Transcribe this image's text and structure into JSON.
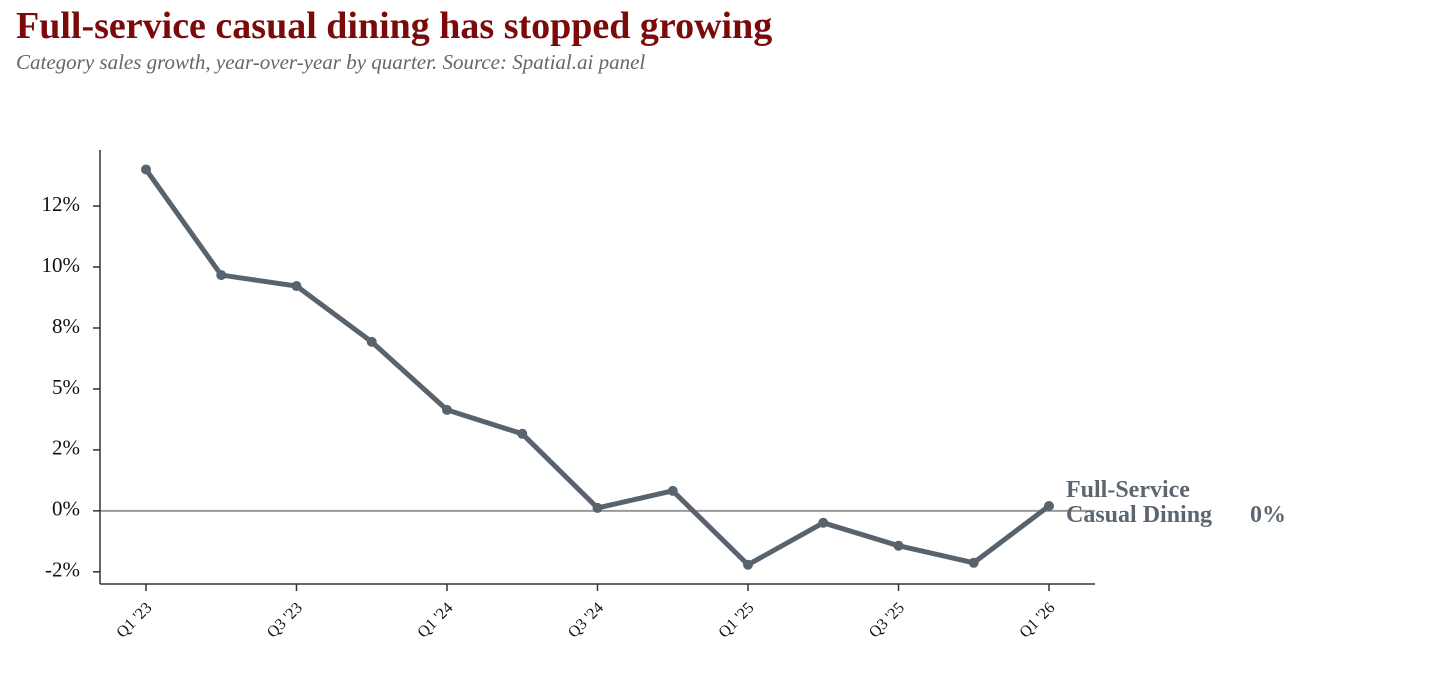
{
  "chart_data": {
    "type": "line",
    "title": "Full-service casual dining has stopped growing",
    "subtitle": "Category sales growth, year-over-year by quarter. Source: Spatial.ai panel",
    "categories": [
      "Q1 '23",
      null,
      "Q3 '23",
      null,
      "Q1 '24",
      null,
      "Q3 '24",
      null,
      "Q1 '25",
      null,
      "Q3 '25",
      null,
      "Q1 '26"
    ],
    "series": [
      {
        "name": "Full-Service Casual Dining",
        "color": "#59636d",
        "values": [
          14.0,
          9.67,
          9.22,
          6.93,
          4.14,
          3.16,
          0.12,
          0.82,
          -2.21,
          -0.49,
          -1.43,
          -2.13,
          0.2
        ],
        "value_labels": [
          null,
          null,
          null,
          null,
          null,
          null,
          null,
          null,
          null,
          null,
          null,
          null,
          "0%"
        ]
      }
    ],
    "ylim": [
      -3,
      14.8
    ],
    "yticks": [
      {
        "value": -2.5,
        "label": "-2%"
      },
      {
        "value": 0,
        "label": "0%"
      },
      {
        "value": 2.5,
        "label": "2%"
      },
      {
        "value": 5,
        "label": "5%"
      },
      {
        "value": 7.5,
        "label": "8%"
      },
      {
        "value": 10,
        "label": "10%"
      },
      {
        "value": 12.5,
        "label": "12%"
      }
    ],
    "zero_line": true
  }
}
